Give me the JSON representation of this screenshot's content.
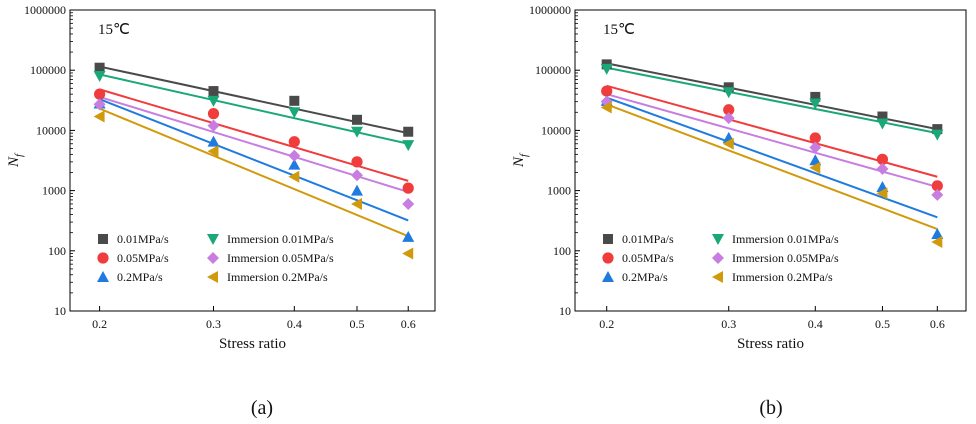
{
  "chart_data": [
    {
      "type": "scatter",
      "panel_label": "(a)",
      "annotation": "15℃",
      "xlabel": "Stress ratio",
      "ylabel": "N",
      "ylabel_sub": "f",
      "x_scale": "log",
      "y_scale": "log",
      "xlim": [
        0.18,
        0.66
      ],
      "ylim": [
        10,
        1000000
      ],
      "xticks": [
        0.2,
        0.3,
        0.4,
        0.5,
        0.6
      ],
      "xtick_labels": [
        "0.2",
        "0.3",
        "0.4",
        "0.5",
        "0.6"
      ],
      "yticks": [
        10,
        100,
        1000,
        10000,
        100000,
        1000000
      ],
      "ytick_labels": [
        "10",
        "100",
        "1000",
        "10000",
        "100000",
        "1000000"
      ],
      "legend_position": "bottom-left",
      "series": [
        {
          "name": "0.01MPa/s",
          "marker": "square",
          "color": "#4a4a4a",
          "x": [
            0.2,
            0.3,
            0.4,
            0.5,
            0.6
          ],
          "y": [
            110000,
            45000,
            31000,
            15000,
            9500
          ],
          "fit": {
            "y_at_0_2": 115000,
            "y_at_0_6": 9000
          }
        },
        {
          "name": "0.05MPa/s",
          "marker": "circle",
          "color": "#f03c3c",
          "x": [
            0.2,
            0.3,
            0.4,
            0.5,
            0.6
          ],
          "y": [
            40000,
            19000,
            6500,
            3000,
            1100
          ],
          "fit": {
            "y_at_0_2": 48000,
            "y_at_0_6": 1450
          }
        },
        {
          "name": "0.2MPa/s",
          "marker": "triangle-up",
          "color": "#1f7be0",
          "x": [
            0.2,
            0.3,
            0.4,
            0.5,
            0.6
          ],
          "y": [
            28000,
            6500,
            2700,
            1000,
            170
          ],
          "fit": {
            "y_at_0_2": 33000,
            "y_at_0_6": 320
          }
        },
        {
          "name": "Immersion 0.01MPa/s",
          "marker": "triangle-down",
          "color": "#1aa87a",
          "x": [
            0.2,
            0.3,
            0.4,
            0.5,
            0.6
          ],
          "y": [
            80000,
            31000,
            20000,
            9500,
            5700
          ],
          "fit": {
            "y_at_0_2": 85000,
            "y_at_0_6": 6000
          }
        },
        {
          "name": "Immersion 0.05MPa/s",
          "marker": "diamond",
          "color": "#c77ee0",
          "x": [
            0.2,
            0.3,
            0.4,
            0.5,
            0.6
          ],
          "y": [
            27000,
            12000,
            3800,
            1800,
            600
          ],
          "fit": {
            "y_at_0_2": 36000,
            "y_at_0_6": 950
          }
        },
        {
          "name": "Immersion 0.2MPa/s",
          "marker": "triangle-left",
          "color": "#d19a0c",
          "x": [
            0.2,
            0.3,
            0.4,
            0.5,
            0.6
          ],
          "y": [
            17000,
            4500,
            1700,
            600,
            90
          ],
          "fit": {
            "y_at_0_2": 23000,
            "y_at_0_6": 175
          }
        }
      ]
    },
    {
      "type": "scatter",
      "panel_label": "(b)",
      "annotation": "15℃",
      "xlabel": "Stress ratio",
      "ylabel": "N",
      "ylabel_sub": "f",
      "x_scale": "log",
      "y_scale": "log",
      "xlim": [
        0.18,
        0.66
      ],
      "ylim": [
        10,
        1000000
      ],
      "xticks": [
        0.2,
        0.3,
        0.4,
        0.5,
        0.6
      ],
      "xtick_labels": [
        "0.2",
        "0.3",
        "0.4",
        "0.5",
        "0.6"
      ],
      "yticks": [
        10,
        100,
        1000,
        10000,
        100000,
        1000000
      ],
      "ytick_labels": [
        "10",
        "100",
        "1000",
        "10000",
        "100000",
        "1000000"
      ],
      "legend_position": "bottom-left",
      "series": [
        {
          "name": "0.01MPa/s",
          "marker": "square",
          "color": "#4a4a4a",
          "x": [
            0.2,
            0.3,
            0.4,
            0.5,
            0.6
          ],
          "y": [
            125000,
            52000,
            36000,
            17000,
            10500
          ],
          "fit": {
            "y_at_0_2": 130000,
            "y_at_0_6": 10500
          }
        },
        {
          "name": "0.05MPa/s",
          "marker": "circle",
          "color": "#f03c3c",
          "x": [
            0.2,
            0.3,
            0.4,
            0.5,
            0.6
          ],
          "y": [
            45000,
            22000,
            7500,
            3300,
            1200
          ],
          "fit": {
            "y_at_0_2": 55000,
            "y_at_0_6": 1700
          }
        },
        {
          "name": "0.2MPa/s",
          "marker": "triangle-up",
          "color": "#1f7be0",
          "x": [
            0.2,
            0.3,
            0.4,
            0.5,
            0.6
          ],
          "y": [
            31000,
            7500,
            3200,
            1150,
            190
          ],
          "fit": {
            "y_at_0_2": 35000,
            "y_at_0_6": 360
          }
        },
        {
          "name": "Immersion 0.01MPa/s",
          "marker": "triangle-down",
          "color": "#1aa87a",
          "x": [
            0.2,
            0.3,
            0.4,
            0.5,
            0.6
          ],
          "y": [
            105000,
            43000,
            28000,
            13000,
            8500
          ],
          "fit": {
            "y_at_0_2": 110000,
            "y_at_0_6": 9000
          }
        },
        {
          "name": "Immersion 0.05MPa/s",
          "marker": "diamond",
          "color": "#c77ee0",
          "x": [
            0.2,
            0.3,
            0.4,
            0.5,
            0.6
          ],
          "y": [
            30000,
            16000,
            5200,
            2300,
            850
          ],
          "fit": {
            "y_at_0_2": 40000,
            "y_at_0_6": 1150
          }
        },
        {
          "name": "Immersion 0.2MPa/s",
          "marker": "triangle-left",
          "color": "#d19a0c",
          "x": [
            0.2,
            0.3,
            0.4,
            0.5,
            0.6
          ],
          "y": [
            24000,
            6000,
            2400,
            900,
            140
          ],
          "fit": {
            "y_at_0_2": 27000,
            "y_at_0_6": 230
          }
        }
      ]
    }
  ]
}
